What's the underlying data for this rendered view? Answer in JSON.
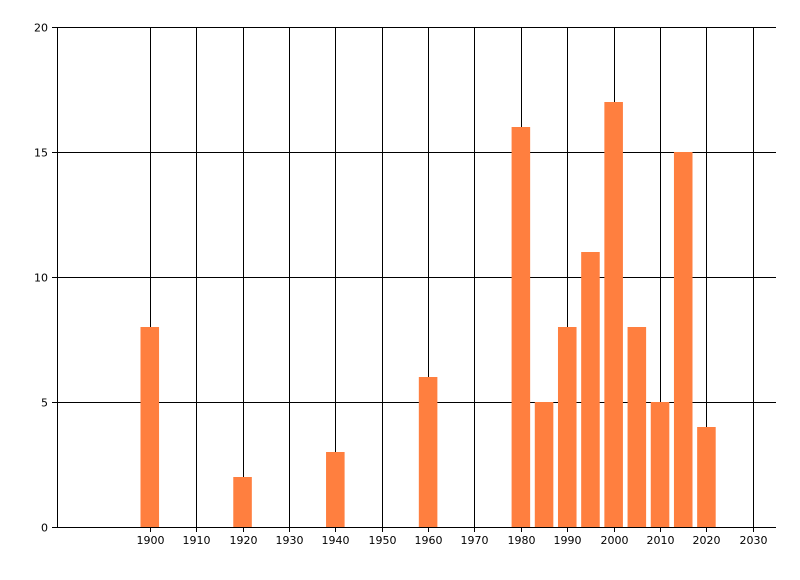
{
  "chart_data": {
    "type": "bar",
    "x": [
      1900,
      1920,
      1940,
      1960,
      1980,
      1985,
      1990,
      1995,
      2000,
      2005,
      2010,
      2015,
      2020
    ],
    "values": [
      8,
      2,
      3,
      6,
      16,
      5,
      8,
      11,
      17,
      8,
      5,
      15,
      4
    ],
    "bar_width_years": 4,
    "xlim": [
      1880,
      2035
    ],
    "ylim": [
      0,
      20
    ],
    "x_ticks": [
      1900,
      1910,
      1920,
      1930,
      1940,
      1950,
      1960,
      1970,
      1980,
      1990,
      2000,
      2010,
      2020,
      2030
    ],
    "y_ticks": [
      0,
      5,
      10,
      15,
      20
    ],
    "grid": true,
    "title": "",
    "xlabel": "",
    "ylabel": "",
    "bar_color": "#ff7f3f",
    "grid_color": "#000000",
    "axis_color": "#000000"
  }
}
